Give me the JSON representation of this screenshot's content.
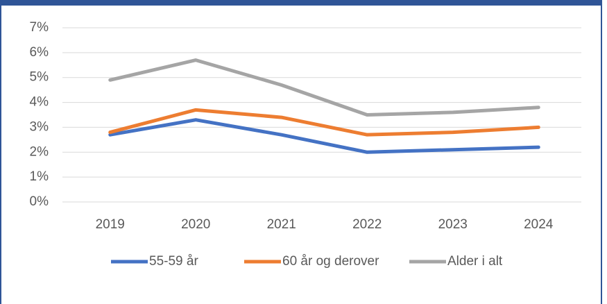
{
  "chart_data": {
    "type": "line",
    "categories": [
      "2019",
      "2020",
      "2021",
      "2022",
      "2023",
      "2024"
    ],
    "series": [
      {
        "name": "55-59 år",
        "color": "#4472c4",
        "values": [
          2.7,
          3.3,
          2.7,
          2.0,
          2.1,
          2.2
        ]
      },
      {
        "name": "60 år og derover",
        "color": "#ed7d31",
        "values": [
          2.8,
          3.7,
          3.4,
          2.7,
          2.8,
          3.0
        ]
      },
      {
        "name": "Alder i alt",
        "color": "#a5a5a5",
        "values": [
          4.9,
          5.7,
          4.7,
          3.5,
          3.6,
          3.8
        ]
      }
    ],
    "ylim": [
      0,
      7
    ],
    "yticks": [
      {
        "value": 0,
        "label": "0%"
      },
      {
        "value": 1,
        "label": "1%"
      },
      {
        "value": 2,
        "label": "2%"
      },
      {
        "value": 3,
        "label": "3%"
      },
      {
        "value": 4,
        "label": "4%"
      },
      {
        "value": 5,
        "label": "5%"
      },
      {
        "value": 6,
        "label": "6%"
      },
      {
        "value": 7,
        "label": "7%"
      }
    ],
    "grid": true,
    "legend": "bottom"
  }
}
